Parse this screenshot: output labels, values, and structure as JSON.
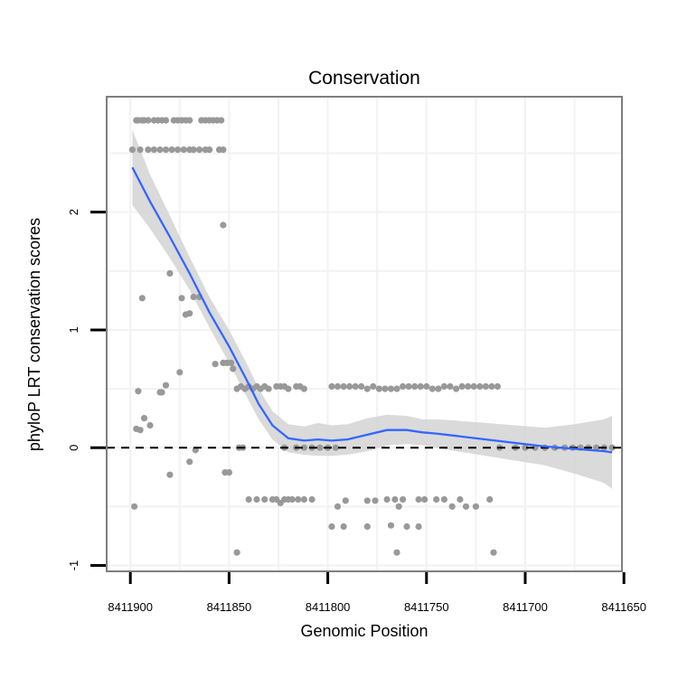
{
  "chart_data": {
    "type": "scatter",
    "title": "Conservation",
    "xlabel": "Genomic Position",
    "ylabel": "phyloP LRT conservation scores",
    "x_reversed": true,
    "xlim": [
      8411912,
      8411651
    ],
    "ylim": [
      -1.05,
      2.98
    ],
    "x_ticks": [
      8411900,
      8411850,
      8411800,
      8411750,
      8411700,
      8411650
    ],
    "x_tick_labels": [
      "8411900",
      "8411850",
      "8411800",
      "8411750",
      "8411700",
      "8411650"
    ],
    "y_ticks": [
      -1,
      0,
      1,
      2
    ],
    "y_tick_labels": [
      "-1",
      "0",
      "1",
      "2"
    ],
    "reference_line": {
      "y": 0,
      "style": "dashed",
      "color": "#000000"
    },
    "colors": {
      "points": "#999999",
      "smooth": "#3366ff",
      "ribbon": "#d3d3d3",
      "grid": "#f2f2f2",
      "panel_border": "#7f7f7f"
    },
    "series": [
      {
        "name": "phyloP scores",
        "type": "scatter",
        "points": [
          [
            8411897,
            2.78
          ],
          [
            8411896,
            2.78
          ],
          [
            8411894,
            2.78
          ],
          [
            8411893,
            2.78
          ],
          [
            8411891,
            2.78
          ],
          [
            8411888,
            2.78
          ],
          [
            8411886,
            2.78
          ],
          [
            8411884,
            2.78
          ],
          [
            8411882,
            2.78
          ],
          [
            8411878,
            2.78
          ],
          [
            8411876,
            2.78
          ],
          [
            8411874,
            2.78
          ],
          [
            8411872,
            2.78
          ],
          [
            8411870,
            2.78
          ],
          [
            8411864,
            2.78
          ],
          [
            8411862,
            2.78
          ],
          [
            8411860,
            2.78
          ],
          [
            8411858,
            2.78
          ],
          [
            8411856,
            2.78
          ],
          [
            8411854,
            2.78
          ],
          [
            8411899,
            2.53
          ],
          [
            8411895,
            2.53
          ],
          [
            8411891,
            2.53
          ],
          [
            8411888,
            2.53
          ],
          [
            8411885,
            2.53
          ],
          [
            8411882,
            2.53
          ],
          [
            8411879,
            2.53
          ],
          [
            8411876,
            2.53
          ],
          [
            8411873,
            2.53
          ],
          [
            8411870,
            2.53
          ],
          [
            8411868,
            2.53
          ],
          [
            8411865,
            2.53
          ],
          [
            8411862,
            2.53
          ],
          [
            8411860,
            2.53
          ],
          [
            8411855,
            2.53
          ],
          [
            8411853,
            2.53
          ],
          [
            8411853,
            1.89
          ],
          [
            8411880,
            1.48
          ],
          [
            8411894,
            1.27
          ],
          [
            8411874,
            1.27
          ],
          [
            8411868,
            1.28
          ],
          [
            8411865,
            1.28
          ],
          [
            8411872,
            1.13
          ],
          [
            8411870,
            1.14
          ],
          [
            8411875,
            0.64
          ],
          [
            8411857,
            0.71
          ],
          [
            8411853,
            0.72
          ],
          [
            8411851,
            0.72
          ],
          [
            8411849,
            0.72
          ],
          [
            8411848,
            0.67
          ],
          [
            8411896,
            0.48
          ],
          [
            8411884,
            0.47
          ],
          [
            8411882,
            0.53
          ],
          [
            8411885,
            0.47
          ],
          [
            8411846,
            0.5
          ],
          [
            8411844,
            0.52
          ],
          [
            8411842,
            0.5
          ],
          [
            8411840,
            0.52
          ],
          [
            8411838,
            0.5
          ],
          [
            8411836,
            0.52
          ],
          [
            8411834,
            0.5
          ],
          [
            8411832,
            0.52
          ],
          [
            8411830,
            0.5
          ],
          [
            8411826,
            0.52
          ],
          [
            8411824,
            0.52
          ],
          [
            8411822,
            0.52
          ],
          [
            8411820,
            0.5
          ],
          [
            8411816,
            0.52
          ],
          [
            8411814,
            0.52
          ],
          [
            8411812,
            0.5
          ],
          [
            8411897,
            0.16
          ],
          [
            8411895,
            0.15
          ],
          [
            8411893,
            0.25
          ],
          [
            8411890,
            0.19
          ],
          [
            8411845,
            0.0
          ],
          [
            8411843,
            0.0
          ],
          [
            8411822,
            0.0
          ],
          [
            8411816,
            0.0
          ],
          [
            8411812,
            0.0
          ],
          [
            8411808,
            0.0
          ],
          [
            8411804,
            0.0
          ],
          [
            8411800,
            0.0
          ],
          [
            8411796,
            0.0
          ],
          [
            8411870,
            -0.12
          ],
          [
            8411867,
            -0.02
          ],
          [
            8411880,
            -0.23
          ],
          [
            8411852,
            -0.21
          ],
          [
            8411850,
            -0.21
          ],
          [
            8411898,
            -0.5
          ],
          [
            8411846,
            -0.89
          ],
          [
            8411840,
            -0.44
          ],
          [
            8411836,
            -0.44
          ],
          [
            8411832,
            -0.44
          ],
          [
            8411828,
            -0.44
          ],
          [
            8411826,
            -0.44
          ],
          [
            8411824,
            -0.47
          ],
          [
            8411822,
            -0.44
          ],
          [
            8411820,
            -0.44
          ],
          [
            8411818,
            -0.44
          ],
          [
            8411815,
            -0.44
          ],
          [
            8411812,
            -0.44
          ],
          [
            8411808,
            -0.44
          ],
          [
            8411798,
            0.52
          ],
          [
            8411795,
            0.52
          ],
          [
            8411792,
            0.52
          ],
          [
            8411789,
            0.52
          ],
          [
            8411786,
            0.52
          ],
          [
            8411783,
            0.52
          ],
          [
            8411780,
            0.5
          ],
          [
            8411777,
            0.52
          ],
          [
            8411774,
            0.5
          ],
          [
            8411771,
            0.5
          ],
          [
            8411768,
            0.5
          ],
          [
            8411765,
            0.5
          ],
          [
            8411762,
            0.52
          ],
          [
            8411759,
            0.52
          ],
          [
            8411756,
            0.52
          ],
          [
            8411753,
            0.52
          ],
          [
            8411750,
            0.52
          ],
          [
            8411747,
            0.5
          ],
          [
            8411744,
            0.5
          ],
          [
            8411741,
            0.52
          ],
          [
            8411738,
            0.52
          ],
          [
            8411735,
            0.5
          ],
          [
            8411732,
            0.52
          ],
          [
            8411729,
            0.52
          ],
          [
            8411726,
            0.52
          ],
          [
            8411723,
            0.52
          ],
          [
            8411720,
            0.52
          ],
          [
            8411717,
            0.52
          ],
          [
            8411714,
            0.52
          ],
          [
            8411713,
            0.0
          ],
          [
            8411705,
            0.0
          ],
          [
            8411700,
            0.0
          ],
          [
            8411695,
            0.0
          ],
          [
            8411690,
            0.0
          ],
          [
            8411685,
            0.0
          ],
          [
            8411680,
            0.0
          ],
          [
            8411676,
            0.0
          ],
          [
            8411672,
            0.0
          ],
          [
            8411668,
            0.0
          ],
          [
            8411664,
            0.0
          ],
          [
            8411660,
            0.0
          ],
          [
            8411656,
            0.0
          ],
          [
            8411791,
            -0.45
          ],
          [
            8411780,
            -0.45
          ],
          [
            8411776,
            -0.45
          ],
          [
            8411770,
            -0.44
          ],
          [
            8411766,
            -0.44
          ],
          [
            8411762,
            -0.44
          ],
          [
            8411754,
            -0.44
          ],
          [
            8411751,
            -0.44
          ],
          [
            8411745,
            -0.44
          ],
          [
            8411741,
            -0.44
          ],
          [
            8411737,
            -0.5
          ],
          [
            8411733,
            -0.44
          ],
          [
            8411730,
            -0.5
          ],
          [
            8411725,
            -0.5
          ],
          [
            8411718,
            -0.44
          ],
          [
            8411795,
            -0.5
          ],
          [
            8411798,
            -0.67
          ],
          [
            8411792,
            -0.67
          ],
          [
            8411780,
            -0.67
          ],
          [
            8411768,
            -0.66
          ],
          [
            8411760,
            -0.67
          ],
          [
            8411754,
            -0.67
          ],
          [
            8411765,
            -0.89
          ],
          [
            8411716,
            -0.89
          ],
          [
            8411764,
            -0.5
          ]
        ]
      },
      {
        "name": "loess fit",
        "type": "line",
        "x": [
          8411899,
          8411890,
          8411880,
          8411870,
          8411860,
          8411850,
          8411845,
          8411840,
          8411835,
          8411828,
          8411820,
          8411812,
          8411805,
          8411798,
          8411790,
          8411780,
          8411770,
          8411760,
          8411752,
          8411745,
          8411735,
          8411720,
          8411705,
          8411690,
          8411675,
          8411660,
          8411656
        ],
        "y": [
          2.38,
          2.09,
          1.79,
          1.48,
          1.15,
          0.86,
          0.7,
          0.54,
          0.37,
          0.19,
          0.08,
          0.06,
          0.07,
          0.06,
          0.07,
          0.11,
          0.15,
          0.15,
          0.13,
          0.12,
          0.1,
          0.07,
          0.04,
          0.01,
          -0.01,
          -0.03,
          -0.04
        ],
        "lower": [
          2.06,
          1.86,
          1.61,
          1.34,
          1.02,
          0.72,
          0.56,
          0.4,
          0.24,
          0.07,
          -0.04,
          -0.06,
          -0.07,
          -0.07,
          -0.06,
          -0.03,
          0.02,
          0.03,
          0.02,
          0.0,
          -0.03,
          -0.07,
          -0.11,
          -0.15,
          -0.22,
          -0.3,
          -0.35
        ],
        "upper": [
          2.7,
          2.32,
          1.97,
          1.62,
          1.28,
          1.0,
          0.84,
          0.68,
          0.5,
          0.31,
          0.2,
          0.18,
          0.21,
          0.19,
          0.2,
          0.25,
          0.28,
          0.27,
          0.24,
          0.24,
          0.23,
          0.21,
          0.19,
          0.17,
          0.2,
          0.24,
          0.27
        ]
      }
    ]
  }
}
